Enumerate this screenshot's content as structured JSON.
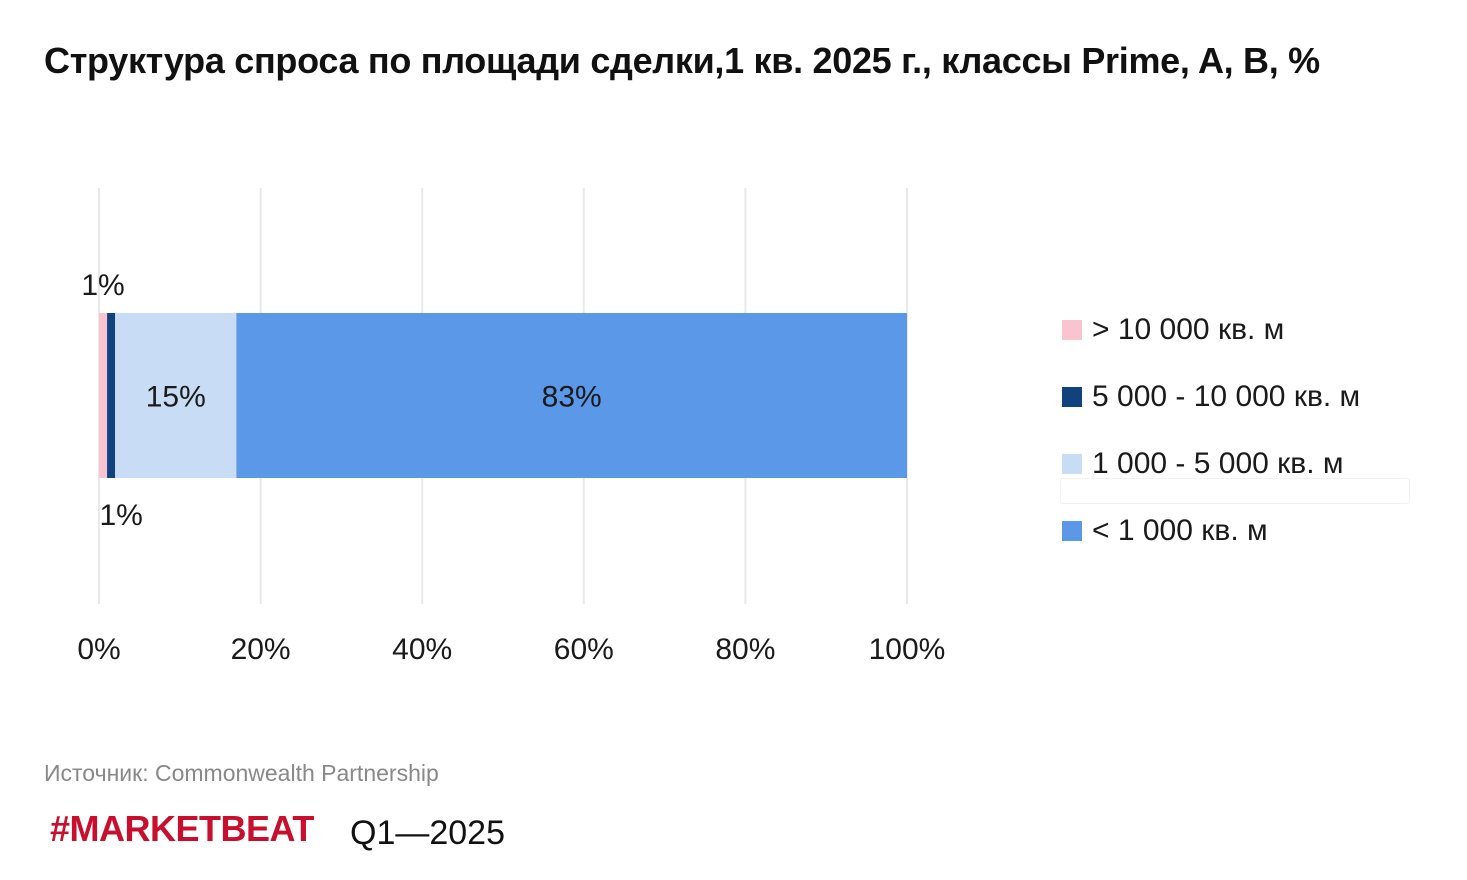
{
  "title": "Структура спроса по площади сделки,1 кв. 2025 г., классы Prime, A, B, %",
  "source": "Источник: Commonwealth Partnership",
  "brand": "#MARKETBEAT",
  "period": "Q1—2025",
  "chart_data": {
    "type": "bar",
    "orientation": "horizontal",
    "stacked": true,
    "title": "Структура спроса по площади сделки,1 кв. 2025 г., классы Prime, A, B, %",
    "xlim": [
      0,
      100
    ],
    "x_ticks": [
      "0%",
      "20%",
      "40%",
      "60%",
      "80%",
      "100%"
    ],
    "grid": true,
    "legend_position": "right",
    "series": [
      {
        "name": "> 10 000 кв. м",
        "value": 1,
        "label": "1%",
        "color": "#f9c4cf"
      },
      {
        "name": "5 000 - 10 000 кв. м",
        "value": 1,
        "label": "1%",
        "color": "#10427e"
      },
      {
        "name": "1 000 - 5 000 кв. м",
        "value": 15,
        "label": "15%",
        "color": "#c9dcf5"
      },
      {
        "name": "< 1 000 кв. м",
        "value": 83,
        "label": "83%",
        "color": "#5b98e8"
      }
    ]
  }
}
